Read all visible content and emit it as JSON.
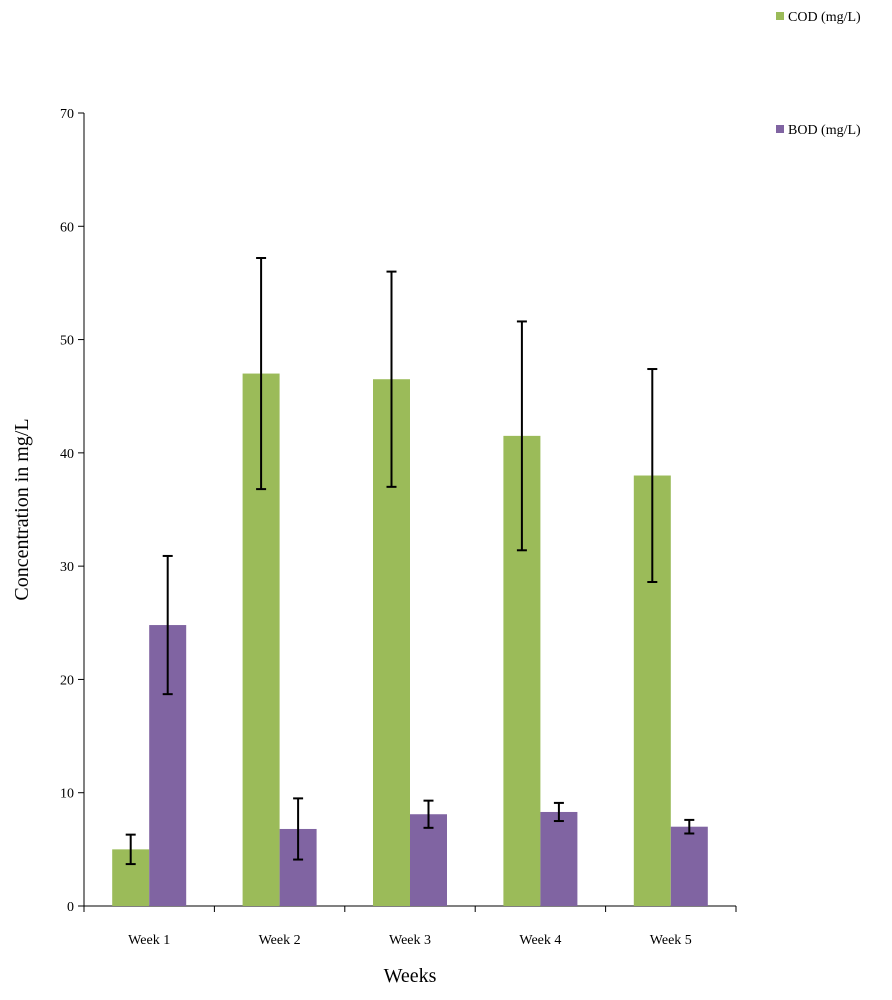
{
  "chart_data": {
    "type": "bar",
    "title": "",
    "xlabel": "Weeks",
    "ylabel": "Concentration in mg/L",
    "ylim": [
      0,
      70
    ],
    "yticks": [
      0,
      10,
      20,
      30,
      40,
      50,
      60,
      70
    ],
    "grid": false,
    "legend_position": "right",
    "categories": [
      "Week 1",
      "Week 2",
      "Week 3",
      "Week 4",
      "Week 5"
    ],
    "series": [
      {
        "name": "COD (mg/L)",
        "color": "#9BBB59",
        "values": [
          5.0,
          47.0,
          46.5,
          41.5,
          38.0
        ],
        "error": [
          1.3,
          10.2,
          9.5,
          10.1,
          9.4
        ]
      },
      {
        "name": "BOD (mg/L)",
        "color": "#8064A2",
        "values": [
          24.8,
          6.8,
          8.1,
          8.3,
          7.0
        ],
        "error": [
          6.1,
          2.7,
          1.2,
          0.8,
          0.6
        ]
      }
    ]
  }
}
